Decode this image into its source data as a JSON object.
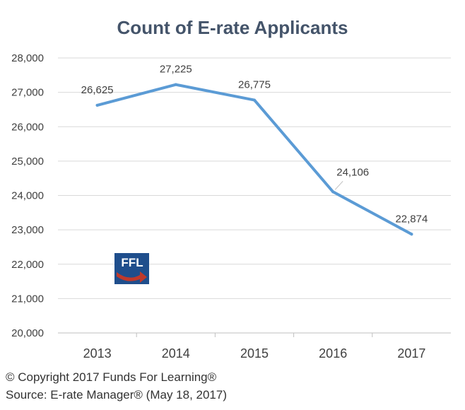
{
  "chart_data": {
    "type": "line",
    "title": "Count of E-rate Applicants",
    "categories": [
      "2013",
      "2014",
      "2015",
      "2016",
      "2017"
    ],
    "series": [
      {
        "values": [
          26625,
          27225,
          26775,
          24106,
          22874
        ],
        "labels": [
          "26,625",
          "27,225",
          "26,775",
          "24,106",
          "22,874"
        ]
      }
    ],
    "ylim": [
      20000,
      28000
    ],
    "yticks": [
      20000,
      21000,
      22000,
      23000,
      24000,
      25000,
      26000,
      27000,
      28000
    ],
    "ytick_labels": [
      "20,000",
      "21,000",
      "22,000",
      "23,000",
      "24,000",
      "25,000",
      "26,000",
      "27,000",
      "28,000"
    ],
    "grid": true,
    "line_color": "#5b9bd5",
    "grid_color": "#d9d9d9"
  },
  "logo": {
    "text": "FFL",
    "bg_color": "#1f4e8c",
    "arrow_color": "#c0392b"
  },
  "footer": {
    "copyright": "© Copyright 2017 Funds For Learning®",
    "source": "Source:  E-rate Manager® (May 18, 2017)"
  }
}
